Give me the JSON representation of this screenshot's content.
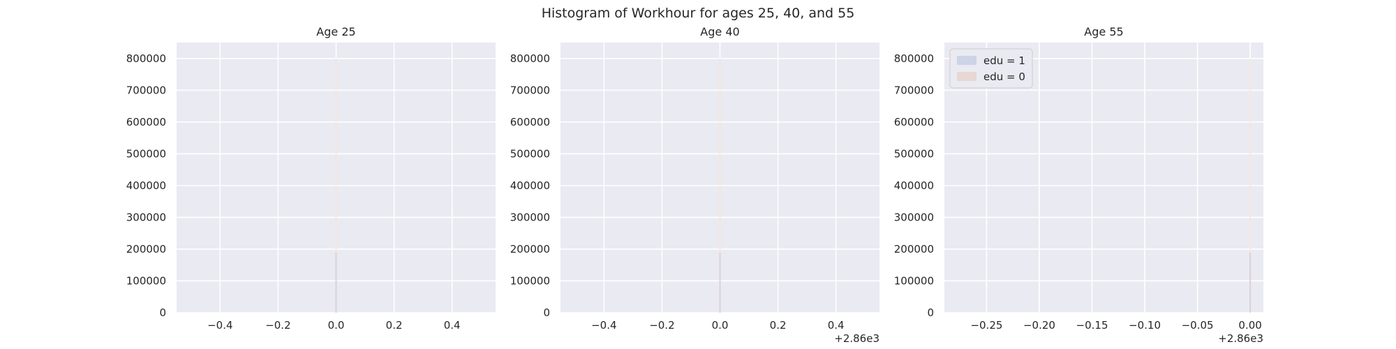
{
  "figure": {
    "suptitle": "Histogram of Workhour for ages 25, 40, and 55"
  },
  "chart_data": [
    {
      "type": "bar",
      "title": "Age 25",
      "xlabel": "",
      "ylabel": "",
      "xlim": [
        -0.55,
        0.55
      ],
      "ylim": [
        0,
        850000
      ],
      "xticks": [
        -0.4,
        -0.2,
        0.0,
        0.2,
        0.4
      ],
      "xtick_labels": [
        "−0.4",
        "−0.2",
        "0.0",
        "0.2",
        "0.4"
      ],
      "yticks": [
        0,
        100000,
        200000,
        300000,
        400000,
        500000,
        600000,
        700000,
        800000
      ],
      "ytick_labels": [
        "0",
        "100000",
        "200000",
        "300000",
        "400000",
        "500000",
        "600000",
        "700000",
        "800000"
      ],
      "offset_label": "",
      "grid": true,
      "series": [
        {
          "name": "edu = 1",
          "color": "#4c72b0",
          "bars": [
            {
              "x": 0.0,
              "value": 190000
            }
          ]
        },
        {
          "name": "edu = 0",
          "color": "#dd8452",
          "bars": [
            {
              "x": 0.0,
              "value": 800000
            }
          ]
        }
      ]
    },
    {
      "type": "bar",
      "title": "Age 40",
      "xlabel": "",
      "ylabel": "",
      "xlim": [
        -0.55,
        0.55
      ],
      "ylim": [
        0,
        850000
      ],
      "xticks": [
        -0.4,
        -0.2,
        0.0,
        0.2,
        0.4
      ],
      "xtick_labels": [
        "−0.4",
        "−0.2",
        "0.0",
        "0.2",
        "0.4"
      ],
      "yticks": [
        0,
        100000,
        200000,
        300000,
        400000,
        500000,
        600000,
        700000,
        800000
      ],
      "ytick_labels": [
        "0",
        "100000",
        "200000",
        "300000",
        "400000",
        "500000",
        "600000",
        "700000",
        "800000"
      ],
      "offset_label": "+2.86e3",
      "grid": true,
      "series": [
        {
          "name": "edu = 1",
          "color": "#4c72b0",
          "bars": [
            {
              "x": 0.0,
              "value": 190000
            }
          ]
        },
        {
          "name": "edu = 0",
          "color": "#dd8452",
          "bars": [
            {
              "x": 0.0,
              "value": 800000
            }
          ]
        }
      ]
    },
    {
      "type": "bar",
      "title": "Age 55",
      "xlabel": "",
      "ylabel": "",
      "xlim": [
        -0.29,
        0.0125
      ],
      "ylim": [
        0,
        850000
      ],
      "xticks": [
        -0.25,
        -0.2,
        -0.15,
        -0.1,
        -0.05,
        0.0
      ],
      "xtick_labels": [
        "−0.25",
        "−0.20",
        "−0.15",
        "−0.10",
        "−0.05",
        "0.00"
      ],
      "yticks": [
        0,
        100000,
        200000,
        300000,
        400000,
        500000,
        600000,
        700000,
        800000
      ],
      "ytick_labels": [
        "0",
        "100000",
        "200000",
        "300000",
        "400000",
        "500000",
        "600000",
        "700000",
        "800000"
      ],
      "offset_label": "+2.86e3",
      "grid": true,
      "legend": "top-left",
      "series": [
        {
          "name": "edu = 1",
          "color": "#4c72b0",
          "bars": [
            {
              "x": 0.0,
              "value": 190000
            }
          ]
        },
        {
          "name": "edu = 0",
          "color": "#dd8452",
          "bars": [
            {
              "x": 0.0,
              "value": 800000
            }
          ]
        }
      ]
    }
  ]
}
